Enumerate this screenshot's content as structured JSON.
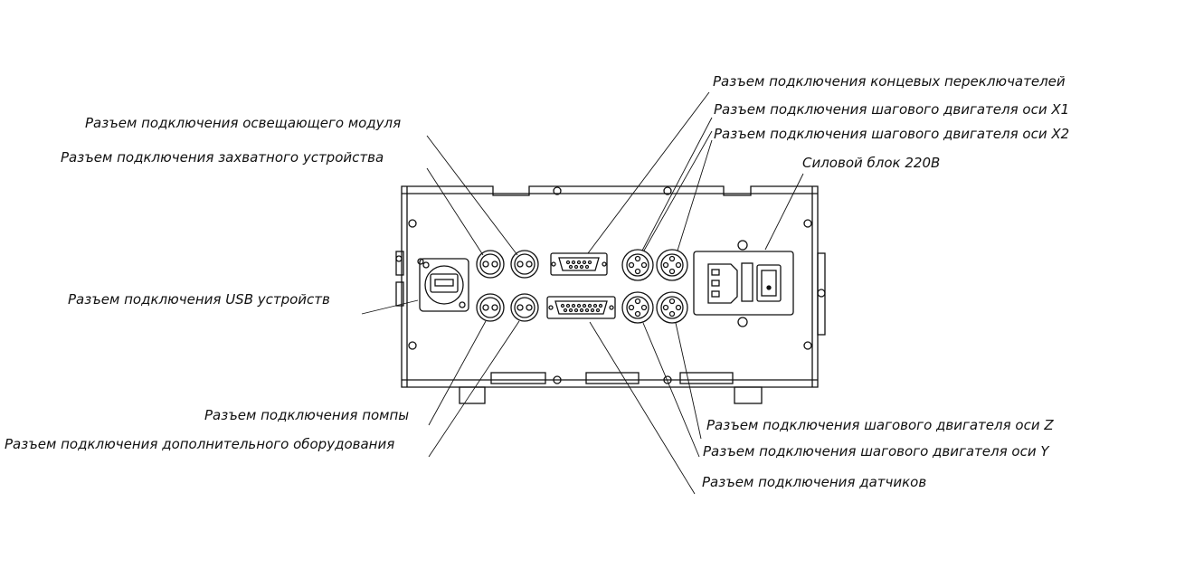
{
  "labels": {
    "lighting_module": "Разъем подключения освещающего модуля",
    "gripper": "Разъем подключения захватного устройства",
    "usb_devices": "Разъем подключения USB устройств",
    "pump": "Разъем подключения помпы",
    "extra_equipment": "Разъем подключения дополнительного оборудования",
    "limit_switches": "Разъем подключения концевых переключателей",
    "stepper_x1": "Разъем подключения шагового двигателя оси X1",
    "stepper_x2": "Разъем подключения шагового двигателя оси X2",
    "power_block": "Силовой блок 220В",
    "stepper_z": "Разъем подключения шагового двигателя оси Z",
    "stepper_y": "Разъем подключения шагового двигателя оси Y",
    "sensors": "Разъем подключения датчиков"
  },
  "colors": {
    "line": "#111111",
    "background": "#ffffff"
  }
}
